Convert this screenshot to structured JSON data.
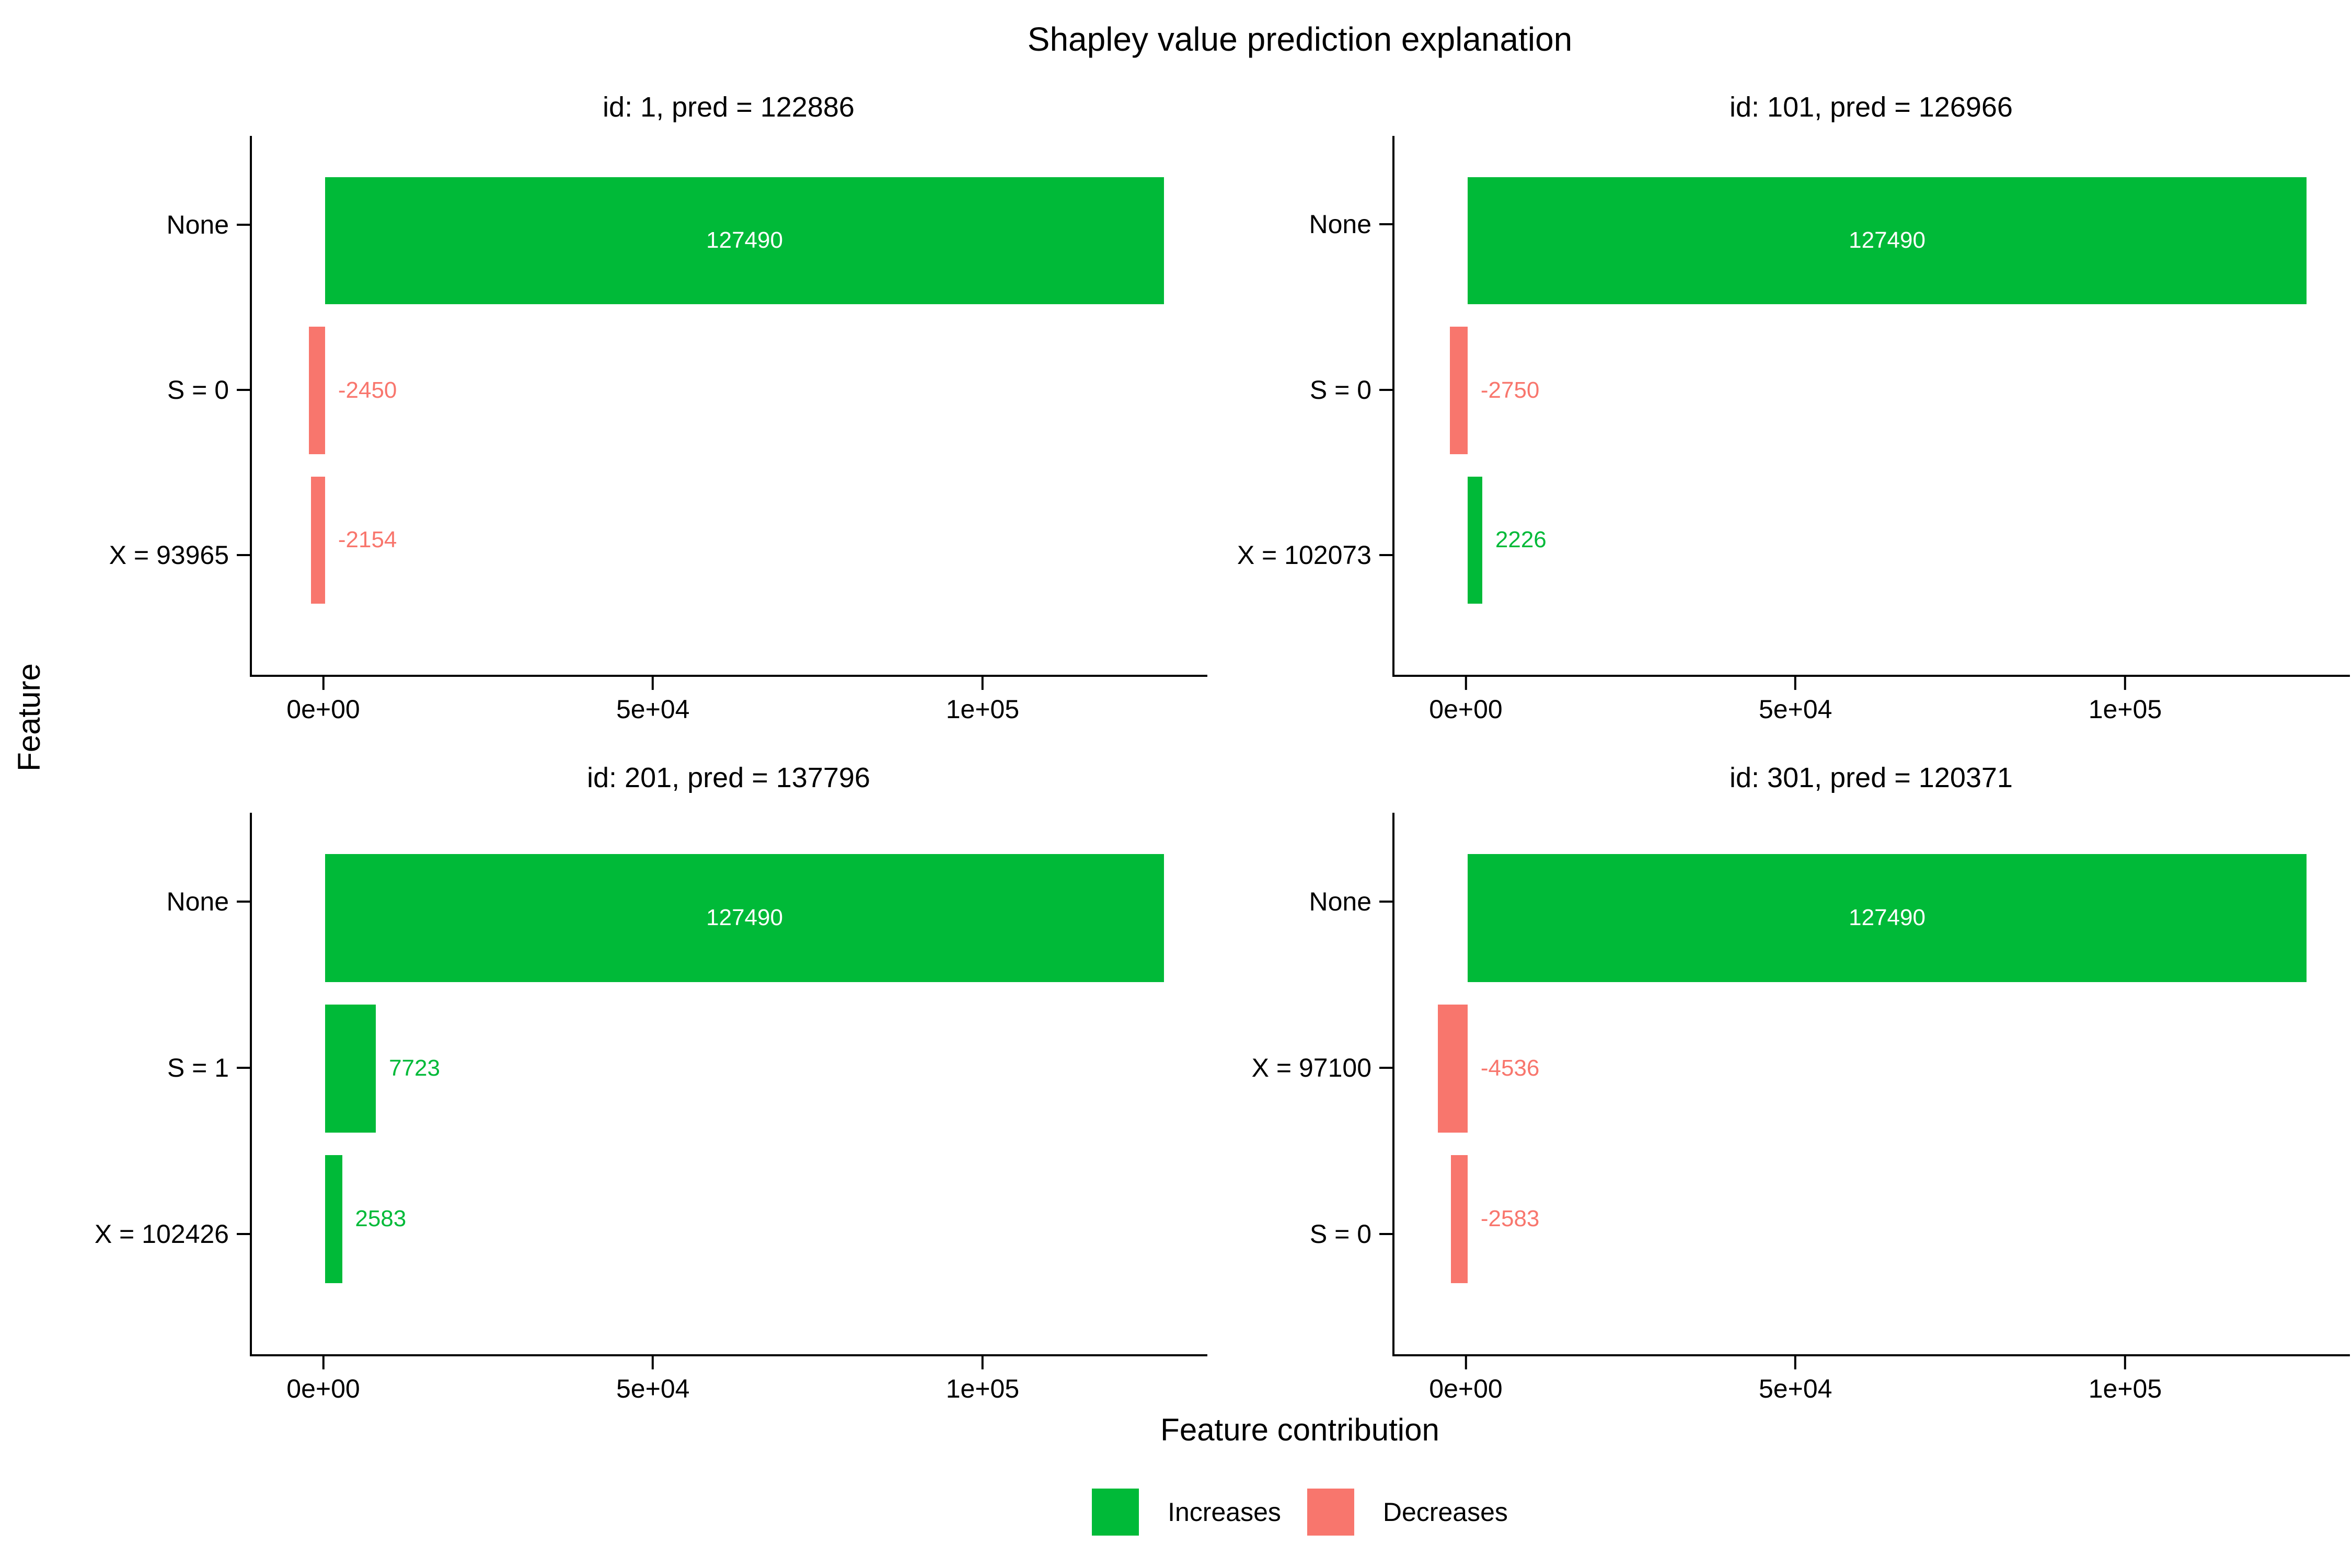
{
  "chart_data": {
    "type": "bar",
    "orientation": "horizontal",
    "title": "Shapley value prediction explanation",
    "xlabel": "Feature contribution",
    "ylabel": "Feature",
    "xlim": [
      -11137,
      134091
    ],
    "grid": false,
    "x_ticks": [
      {
        "label": "0e+00",
        "value": 0
      },
      {
        "label": "5e+04",
        "value": 50000
      },
      {
        "label": "1e+05",
        "value": 100000
      }
    ],
    "colors": {
      "increase": "#00BA38",
      "decrease": "#F8766D"
    },
    "legend": {
      "position": "bottom",
      "entries": [
        {
          "label": "Increases",
          "color": "#00BA38"
        },
        {
          "label": "Decreases",
          "color": "#F8766D"
        }
      ]
    },
    "panels": [
      {
        "title": "id: 1, pred = 122886",
        "rows": [
          {
            "label": "None",
            "value": 127490,
            "value_label": "127490"
          },
          {
            "label": "S = 0",
            "value": -2450,
            "value_label": "-2450"
          },
          {
            "label": "X = 93965",
            "value": -2154,
            "value_label": "-2154"
          }
        ]
      },
      {
        "title": "id: 101, pred = 126966",
        "rows": [
          {
            "label": "None",
            "value": 127490,
            "value_label": "127490"
          },
          {
            "label": "S = 0",
            "value": -2750,
            "value_label": "-2750"
          },
          {
            "label": "X = 102073",
            "value": 2226,
            "value_label": "2226"
          }
        ]
      },
      {
        "title": "id: 201, pred = 137796",
        "rows": [
          {
            "label": "None",
            "value": 127490,
            "value_label": "127490"
          },
          {
            "label": "S = 1",
            "value": 7723,
            "value_label": "7723"
          },
          {
            "label": "X = 102426",
            "value": 2583,
            "value_label": "2583"
          }
        ]
      },
      {
        "title": "id: 301, pred = 120371",
        "rows": [
          {
            "label": "None",
            "value": 127490,
            "value_label": "127490"
          },
          {
            "label": "X = 97100",
            "value": -4536,
            "value_label": "-4536"
          },
          {
            "label": "S = 0",
            "value": -2583,
            "value_label": "-2583"
          }
        ]
      }
    ]
  }
}
